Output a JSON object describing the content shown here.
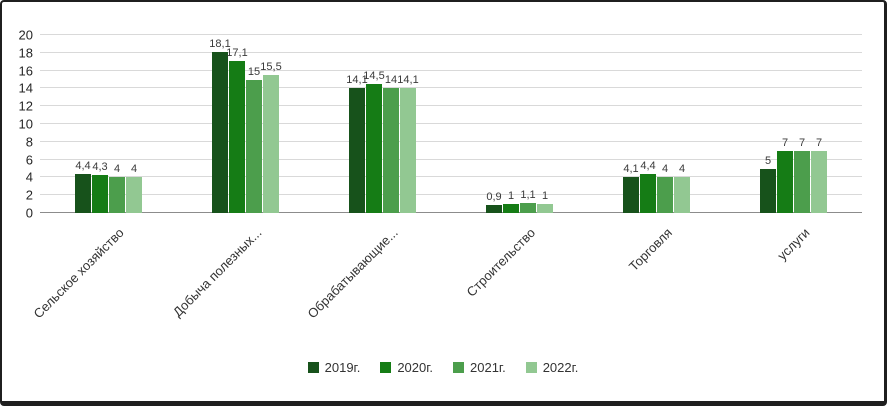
{
  "chart_data": {
    "type": "bar",
    "title": "",
    "xlabel": "",
    "ylabel": "",
    "ylim": [
      0,
      20
    ],
    "ytick_step": 2,
    "grid": true,
    "legend_position": "bottom",
    "decimal_separator": ",",
    "categories": [
      "Сельское хозяйство",
      "Добыча полезных...",
      "Обрабатывающие...",
      "Строительство",
      "Торговля",
      "услуги"
    ],
    "series": [
      {
        "name": "2019г.",
        "color": "#17521b",
        "values": [
          4.4,
          18.1,
          14.1,
          0.9,
          4.1,
          5
        ]
      },
      {
        "name": "2020г.",
        "color": "#157c15",
        "values": [
          4.3,
          17.1,
          14.5,
          1,
          4.4,
          7
        ]
      },
      {
        "name": "2021г.",
        "color": "#4c9e4c",
        "values": [
          4,
          15,
          14,
          1.1,
          4,
          7
        ]
      },
      {
        "name": "2022г.",
        "color": "#92c892",
        "values": [
          4,
          15.5,
          14.1,
          1,
          4,
          7
        ]
      }
    ]
  }
}
